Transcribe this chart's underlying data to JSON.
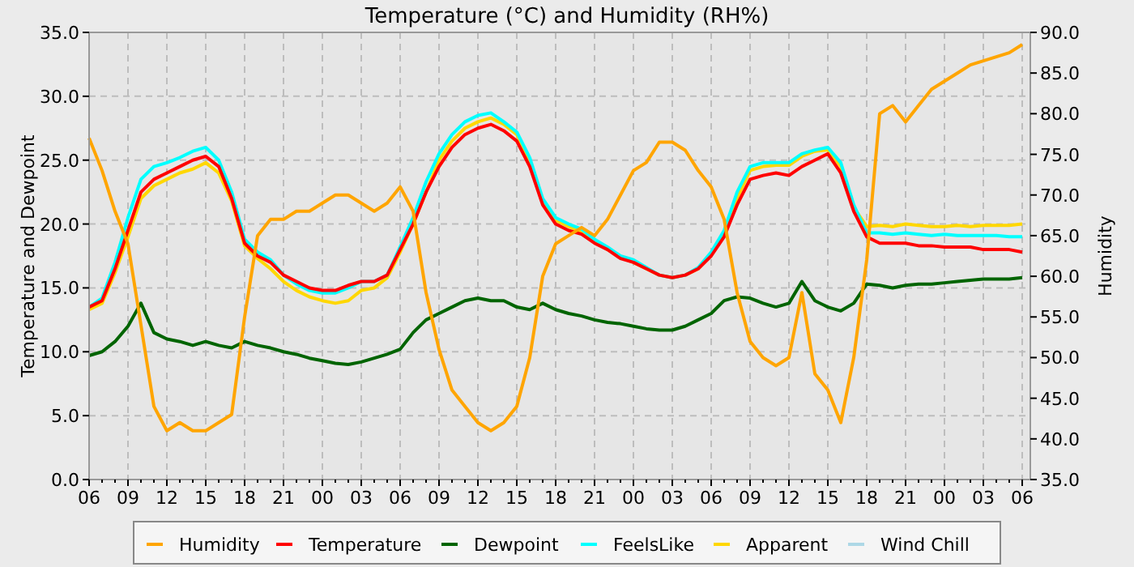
{
  "chart_data": {
    "type": "line",
    "title": "Temperature (°C) and Humidity (RH%)",
    "ylabel": "Temperature and Dewpoint",
    "y2label": "Humidity",
    "categories": [
      "06",
      null,
      null,
      "09",
      null,
      null,
      "12",
      null,
      null,
      "15",
      null,
      null,
      "18",
      null,
      null,
      "21",
      null,
      null,
      "00",
      null,
      null,
      "03",
      null,
      null,
      "06",
      null,
      null,
      "09",
      null,
      null,
      "12",
      null,
      null,
      "15",
      null,
      null,
      "18",
      null,
      null,
      "21",
      null,
      null,
      "00",
      null,
      null,
      "03",
      null,
      null,
      "06",
      null,
      null,
      "09",
      null,
      null,
      "12",
      null,
      null,
      "15",
      null,
      null,
      "18",
      null,
      null,
      "21",
      null,
      null,
      "00",
      null,
      null,
      "03",
      null,
      null,
      "06"
    ],
    "ylim": [
      0,
      35
    ],
    "yticks": [
      {
        "value": 0,
        "label": "0.0"
      },
      {
        "value": 5,
        "label": "5.0"
      },
      {
        "value": 10,
        "label": "10.0"
      },
      {
        "value": 15,
        "label": "15.0"
      },
      {
        "value": 20,
        "label": "20.0"
      },
      {
        "value": 25,
        "label": "25.0"
      },
      {
        "value": 30,
        "label": "30.0"
      },
      {
        "value": 35,
        "label": "35.0"
      }
    ],
    "y2lim": [
      35,
      90
    ],
    "y2ticks": [
      {
        "value": 35,
        "label": "35.0"
      },
      {
        "value": 40,
        "label": "40.0"
      },
      {
        "value": 45,
        "label": "45.0"
      },
      {
        "value": 50,
        "label": "50.0"
      },
      {
        "value": 55,
        "label": "55.0"
      },
      {
        "value": 60,
        "label": "60.0"
      },
      {
        "value": 65,
        "label": "65.0"
      },
      {
        "value": 70,
        "label": "70.0"
      },
      {
        "value": 75,
        "label": "75.0"
      },
      {
        "value": 80,
        "label": "80.0"
      },
      {
        "value": 85,
        "label": "85.0"
      },
      {
        "value": 90,
        "label": "90.0"
      }
    ],
    "grid": true,
    "legend": "bottom",
    "line_style": "solid",
    "marker": "none",
    "series": [
      {
        "name": "Humidity",
        "color": "#ffa500",
        "axis": "y2",
        "values": [
          77,
          73,
          68,
          64,
          54,
          44,
          41,
          42,
          41,
          41,
          42,
          43,
          55,
          65,
          67,
          67,
          68,
          68,
          69,
          70,
          70,
          69,
          68,
          69,
          71,
          68,
          58,
          51,
          46,
          44,
          42,
          41,
          42,
          44,
          50,
          60,
          64,
          65,
          66,
          65,
          67,
          70,
          73,
          74,
          76.5,
          76.5,
          75.5,
          73,
          71,
          67,
          58,
          52,
          50,
          49,
          50,
          58,
          48,
          46,
          42,
          50,
          62,
          80,
          81,
          79,
          81,
          83,
          84,
          85,
          86,
          86.5,
          87,
          87.5,
          88.5
        ]
      },
      {
        "name": "Temperature",
        "color": "#ff0000",
        "values": [
          13.5,
          14.0,
          16.5,
          19.5,
          22.5,
          23.5,
          24.0,
          24.5,
          25.0,
          25.3,
          24.5,
          22.0,
          18.5,
          17.5,
          17.0,
          16.0,
          15.5,
          15.0,
          14.8,
          14.8,
          15.2,
          15.5,
          15.5,
          16.0,
          18.0,
          20.0,
          22.5,
          24.5,
          26.0,
          27.0,
          27.5,
          27.8,
          27.3,
          26.5,
          24.5,
          21.5,
          20.0,
          19.5,
          19.2,
          18.5,
          18.0,
          17.3,
          17.0,
          16.5,
          16.0,
          15.8,
          16.0,
          16.5,
          17.5,
          19.0,
          21.5,
          23.5,
          23.8,
          24.0,
          23.8,
          24.5,
          25.0,
          25.5,
          24.0,
          21.0,
          19.0,
          18.5,
          18.5,
          18.5,
          18.3,
          18.3,
          18.2,
          18.2,
          18.2,
          18.0,
          18.0,
          18.0,
          17.8
        ]
      },
      {
        "name": "Dewpoint",
        "color": "#006400",
        "values": [
          9.7,
          10.0,
          10.8,
          12.0,
          13.8,
          11.5,
          11.0,
          10.8,
          10.5,
          10.8,
          10.5,
          10.3,
          10.8,
          10.5,
          10.3,
          10.0,
          9.8,
          9.5,
          9.3,
          9.1,
          9.0,
          9.2,
          9.5,
          9.8,
          10.2,
          11.5,
          12.5,
          13.0,
          13.5,
          14.0,
          14.2,
          14.0,
          14.0,
          13.5,
          13.3,
          13.8,
          13.3,
          13.0,
          12.8,
          12.5,
          12.3,
          12.2,
          12.0,
          11.8,
          11.7,
          11.7,
          12.0,
          12.5,
          13.0,
          14.0,
          14.3,
          14.2,
          13.8,
          13.5,
          13.8,
          15.5,
          14.0,
          13.5,
          13.2,
          13.8,
          15.3,
          15.2,
          15.0,
          15.2,
          15.3,
          15.3,
          15.4,
          15.5,
          15.6,
          15.7,
          15.7,
          15.7,
          15.8
        ]
      },
      {
        "name": "FeelsLike",
        "color": "#00ffff",
        "values": [
          13.5,
          14.2,
          17.0,
          20.5,
          23.5,
          24.5,
          24.8,
          25.2,
          25.7,
          26.0,
          25.0,
          22.5,
          18.8,
          17.8,
          17.2,
          16.0,
          15.3,
          14.8,
          14.6,
          14.6,
          15.0,
          15.5,
          15.5,
          16.0,
          18.2,
          20.5,
          23.3,
          25.5,
          27.0,
          28.0,
          28.5,
          28.7,
          28.0,
          27.2,
          25.2,
          22.0,
          20.5,
          20.0,
          19.6,
          18.8,
          18.2,
          17.5,
          17.2,
          16.6,
          16.0,
          15.8,
          16.0,
          16.6,
          17.8,
          19.5,
          22.5,
          24.5,
          24.8,
          24.8,
          24.8,
          25.5,
          25.8,
          26.0,
          24.8,
          21.5,
          19.3,
          19.3,
          19.2,
          19.3,
          19.2,
          19.1,
          19.2,
          19.1,
          19.1,
          19.1,
          19.1,
          19.0,
          19.0
        ]
      },
      {
        "name": "Apparent",
        "color": "#ffd700",
        "values": [
          13.3,
          13.8,
          16.2,
          19.0,
          22.0,
          23.0,
          23.5,
          24.0,
          24.3,
          24.8,
          24.0,
          21.8,
          18.3,
          17.3,
          16.5,
          15.5,
          14.8,
          14.3,
          14.0,
          13.8,
          14.0,
          14.8,
          15.0,
          15.8,
          17.8,
          20.0,
          22.5,
          25.0,
          26.5,
          27.5,
          28.0,
          28.3,
          27.8,
          27.0,
          25.0,
          21.8,
          20.3,
          19.8,
          19.4,
          18.6,
          18.0,
          17.4,
          17.0,
          16.5,
          16.0,
          15.8,
          16.0,
          16.5,
          17.6,
          19.2,
          22.0,
          24.2,
          24.5,
          24.6,
          24.6,
          25.3,
          25.7,
          25.8,
          24.5,
          21.3,
          19.8,
          19.9,
          19.8,
          20.0,
          19.9,
          19.8,
          19.8,
          19.9,
          19.8,
          19.9,
          19.9,
          19.9,
          20.0
        ]
      },
      {
        "name": "Wind Chill",
        "color": "#add8e6",
        "values": [
          null,
          null,
          null,
          null,
          null,
          null,
          null,
          null,
          null,
          null,
          null,
          null,
          null,
          null,
          null,
          null,
          null,
          null,
          null,
          null,
          null,
          null,
          null,
          null,
          null,
          null,
          null,
          null,
          null,
          null,
          null,
          null,
          null,
          null,
          null,
          null,
          null,
          null,
          null,
          null,
          null,
          null,
          null,
          null,
          null,
          null,
          null,
          null,
          null,
          null,
          null,
          null,
          null,
          null,
          null,
          null,
          null,
          null,
          null,
          null,
          null,
          null,
          null,
          null,
          null,
          null,
          null,
          null,
          null,
          null,
          null,
          null,
          null
        ]
      }
    ]
  }
}
